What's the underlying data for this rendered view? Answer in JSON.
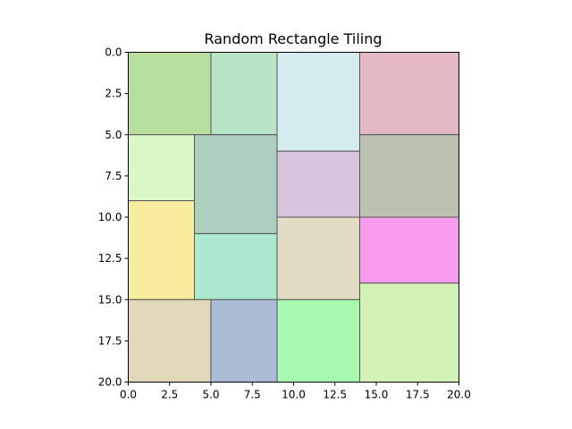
{
  "chart_data": {
    "type": "heatmap",
    "title": "Random Rectangle Tiling",
    "xlabel": "",
    "ylabel": "",
    "xlim": [
      0,
      20
    ],
    "ylim": [
      20,
      0
    ],
    "y_inverted": true,
    "grid": false,
    "legend": "none",
    "edge_color": "#555555",
    "xticks": [
      0,
      2.5,
      5,
      7.5,
      10,
      12.5,
      15,
      17.5,
      20
    ],
    "xtick_labels": [
      "0.0",
      "2.5",
      "5.0",
      "7.5",
      "10.0",
      "12.5",
      "15.0",
      "17.5",
      "20.0"
    ],
    "yticks": [
      0,
      2.5,
      5,
      7.5,
      10,
      12.5,
      15,
      17.5,
      20
    ],
    "ytick_labels": [
      "0.0",
      "2.5",
      "5.0",
      "7.5",
      "10.0",
      "12.5",
      "15.0",
      "17.5",
      "20.0"
    ],
    "rectangles": [
      {
        "x": 0,
        "y": 0,
        "w": 5,
        "h": 5,
        "color": "#b6df9f"
      },
      {
        "x": 5,
        "y": 0,
        "w": 4,
        "h": 5,
        "color": "#b7e5c5"
      },
      {
        "x": 9,
        "y": 0,
        "w": 5,
        "h": 6,
        "color": "#d5ecee"
      },
      {
        "x": 14,
        "y": 0,
        "w": 6,
        "h": 5,
        "color": "#e5b9c3"
      },
      {
        "x": 0,
        "y": 5,
        "w": 4,
        "h": 4,
        "color": "#dcf7c6"
      },
      {
        "x": 4,
        "y": 5,
        "w": 5,
        "h": 6,
        "color": "#accebf"
      },
      {
        "x": 9,
        "y": 6,
        "w": 5,
        "h": 4,
        "color": "#d8c4dc"
      },
      {
        "x": 14,
        "y": 5,
        "w": 6,
        "h": 5,
        "color": "#bbc2b0"
      },
      {
        "x": 0,
        "y": 9,
        "w": 4,
        "h": 6,
        "color": "#f8ed9f"
      },
      {
        "x": 4,
        "y": 11,
        "w": 5,
        "h": 4,
        "color": "#ace9ce"
      },
      {
        "x": 9,
        "y": 10,
        "w": 5,
        "h": 5,
        "color": "#e2dcc5"
      },
      {
        "x": 14,
        "y": 10,
        "w": 6,
        "h": 4,
        "color": "#f79cec"
      },
      {
        "x": 0,
        "y": 15,
        "w": 5,
        "h": 5,
        "color": "#e0d8b9"
      },
      {
        "x": 5,
        "y": 15,
        "w": 4,
        "h": 5,
        "color": "#acbbd6"
      },
      {
        "x": 9,
        "y": 15,
        "w": 5,
        "h": 5,
        "color": "#a9f8b0"
      },
      {
        "x": 14,
        "y": 14,
        "w": 6,
        "h": 6,
        "color": "#d3f3b6"
      }
    ]
  }
}
